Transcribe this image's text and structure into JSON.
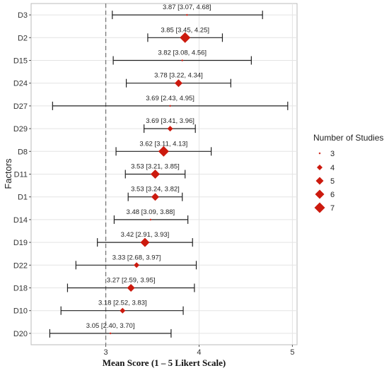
{
  "chart_data": {
    "type": "forest",
    "xlabel": "Mean Score (1 – 5 Likert Scale)",
    "ylabel": "Factors",
    "xlim": [
      2.2,
      5.05
    ],
    "xticks": [
      "3",
      "4",
      "5"
    ],
    "reference_line": 3,
    "grid": true,
    "legend": {
      "title": "Number of Studies",
      "placement": "right",
      "entries": [
        "3",
        "4",
        "5",
        "6",
        "7"
      ]
    },
    "colors": {
      "marker": "#cc1a0e",
      "line": "#222222",
      "reference": "#777777",
      "grid": "#e4e4e4",
      "frame": "#bbbbbb"
    },
    "points": [
      {
        "factor": "D3",
        "mean": 3.87,
        "lower": 3.07,
        "upper": 4.68,
        "studies": 3,
        "label": "3.87 [3.07, 4.68]"
      },
      {
        "factor": "D2",
        "mean": 3.85,
        "lower": 3.45,
        "upper": 4.25,
        "studies": 7,
        "label": "3.85 [3.45, 4.25]"
      },
      {
        "factor": "D15",
        "mean": 3.82,
        "lower": 3.08,
        "upper": 4.56,
        "studies": 3,
        "label": "3.82 [3.08, 4.56]"
      },
      {
        "factor": "D24",
        "mean": 3.78,
        "lower": 3.22,
        "upper": 4.34,
        "studies": 5,
        "label": "3.78 [3.22, 4.34]"
      },
      {
        "factor": "D27",
        "mean": 3.69,
        "lower": 2.43,
        "upper": 4.95,
        "studies": 3,
        "label": "3.69 [2.43, 4.95]"
      },
      {
        "factor": "D29",
        "mean": 3.69,
        "lower": 3.41,
        "upper": 3.96,
        "studies": 4,
        "label": "3.69 [3.41, 3.96]"
      },
      {
        "factor": "D8",
        "mean": 3.62,
        "lower": 3.11,
        "upper": 4.13,
        "studies": 7,
        "label": "3.62 [3.11, 4.13]"
      },
      {
        "factor": "D11",
        "mean": 3.53,
        "lower": 3.21,
        "upper": 3.85,
        "studies": 6,
        "label": "3.53 [3.21, 3.85]"
      },
      {
        "factor": "D1",
        "mean": 3.53,
        "lower": 3.24,
        "upper": 3.82,
        "studies": 5,
        "label": "3.53 [3.24, 3.82]"
      },
      {
        "factor": "D14",
        "mean": 3.48,
        "lower": 3.09,
        "upper": 3.88,
        "studies": 3,
        "label": "3.48 [3.09, 3.88]"
      },
      {
        "factor": "D19",
        "mean": 3.42,
        "lower": 2.91,
        "upper": 3.93,
        "studies": 6,
        "label": "3.42 [2.91, 3.93]"
      },
      {
        "factor": "D22",
        "mean": 3.33,
        "lower": 2.68,
        "upper": 3.97,
        "studies": 4,
        "label": "3.33 [2.68, 3.97]"
      },
      {
        "factor": "D18",
        "mean": 3.27,
        "lower": 2.59,
        "upper": 3.95,
        "studies": 5,
        "label": "3.27 [2.59, 3.95]"
      },
      {
        "factor": "D10",
        "mean": 3.18,
        "lower": 2.52,
        "upper": 3.83,
        "studies": 4,
        "label": "3.18 [2.52, 3.83]"
      },
      {
        "factor": "D20",
        "mean": 3.05,
        "lower": 2.4,
        "upper": 3.7,
        "studies": 3,
        "label": "3.05 [2.40, 3.70]"
      }
    ]
  }
}
